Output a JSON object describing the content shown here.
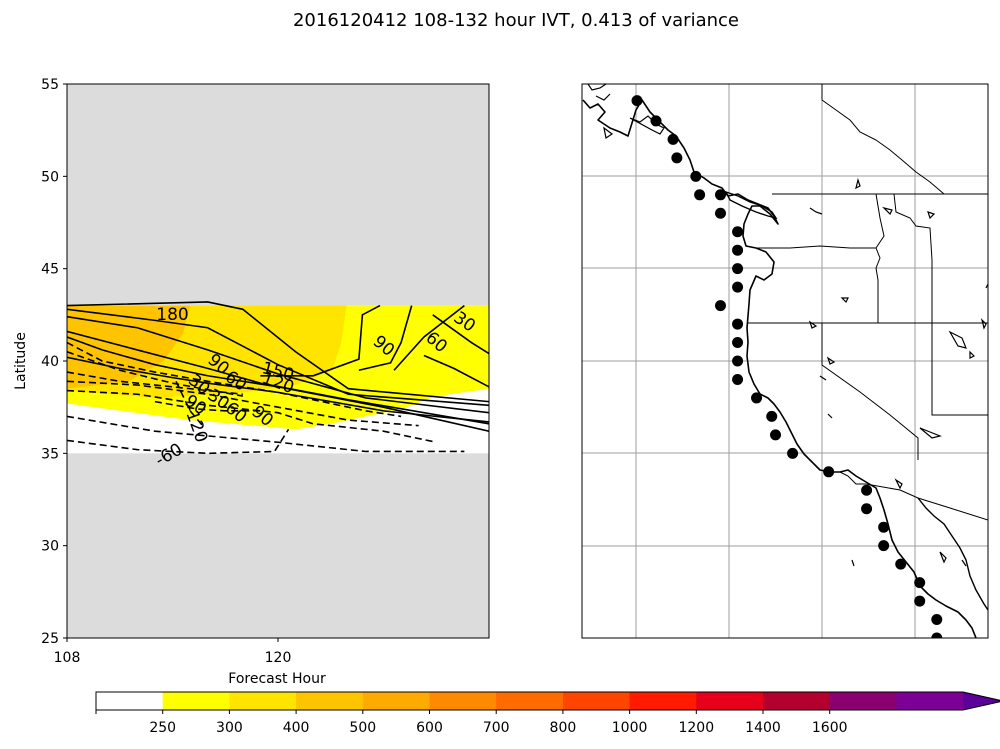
{
  "title": "2016120412 108-132 hour IVT, 0.413 of variance",
  "chart_data": [
    {
      "type": "contour",
      "xlabel": "Forecast Hour",
      "ylabel": "Latitude",
      "xlim": [
        108,
        132
      ],
      "ylim": [
        25,
        55
      ],
      "xticks": [
        108,
        120
      ],
      "xtick_labels": [
        "108",
        "120"
      ],
      "yticks": [
        25,
        30,
        35,
        40,
        45,
        50,
        55
      ],
      "ytick_labels": [
        "25",
        "30",
        "35",
        "40",
        "45",
        "50",
        "55"
      ],
      "masked_color": "#dcdcdc",
      "data_band": [
        35,
        43
      ],
      "filled_regions": [
        {
          "level": "250",
          "color": "#ffff00",
          "points": [
            [
              108,
              43
            ],
            [
              132,
              43
            ],
            [
              132,
              38.5
            ],
            [
              129,
              38.1
            ],
            [
              127,
              37.4
            ],
            [
              123,
              36.6
            ],
            [
              121,
              36.3
            ],
            [
              115,
              36.8
            ],
            [
              108,
              37.7
            ]
          ]
        },
        {
          "level": "300",
          "color": "#ffe400",
          "points": [
            [
              108,
              43
            ],
            [
              123.9,
              43
            ],
            [
              123.6,
              41
            ],
            [
              123.1,
              39.5
            ],
            [
              121,
              38.7
            ],
            [
              118,
              38.3
            ],
            [
              113,
              38
            ],
            [
              108,
              38.4
            ]
          ]
        },
        {
          "level": "400",
          "color": "#ffc400",
          "points": [
            [
              108,
              43
            ],
            [
              115,
              43
            ],
            [
              114.6,
              41.5
            ],
            [
              113.5,
              40
            ],
            [
              111.5,
              38.9
            ],
            [
              108,
              38.5
            ]
          ]
        }
      ],
      "contour_labels": [
        {
          "text": "180",
          "x": 114.0,
          "y": 42.5,
          "angle": 0
        },
        {
          "text": "150",
          "x": 120.0,
          "y": 39.4,
          "angle": 15
        },
        {
          "text": "120",
          "x": 120.0,
          "y": 38.8,
          "angle": 20
        },
        {
          "text": "90",
          "x": 126.0,
          "y": 40.8,
          "angle": 40
        },
        {
          "text": "60",
          "x": 129.0,
          "y": 41.0,
          "angle": 40
        },
        {
          "text": "30",
          "x": 130.6,
          "y": 42.1,
          "angle": 35
        },
        {
          "text": "90",
          "x": 116.6,
          "y": 39.8,
          "angle": 40
        },
        {
          "text": "60",
          "x": 117.6,
          "y": 38.9,
          "angle": 35
        },
        {
          "text": "30",
          "x": 116.6,
          "y": 37.9,
          "angle": 35
        },
        {
          "text": "60",
          "x": 117.6,
          "y": 37.2,
          "angle": 40
        },
        {
          "text": "90",
          "x": 119.1,
          "y": 37.0,
          "angle": 40
        },
        {
          "text": "30",
          "x": 115.5,
          "y": 38.7,
          "angle": 40
        },
        {
          "text": "90",
          "x": 115.3,
          "y": 37.6,
          "angle": 35
        },
        {
          "text": "-120",
          "x": 115.3,
          "y": 36.6,
          "angle": 70
        },
        {
          "text": "-60",
          "x": 113.8,
          "y": 34.9,
          "angle": -30
        }
      ],
      "positive_contours": [
        [
          [
            108,
            43
          ],
          [
            116,
            43.2
          ],
          [
            118,
            42.8
          ],
          [
            121,
            40.5
          ],
          [
            124,
            38.5
          ],
          [
            132,
            37.8
          ]
        ],
        [
          [
            108,
            42.8
          ],
          [
            113,
            42.2
          ],
          [
            116,
            41.8
          ],
          [
            118,
            40.8
          ],
          [
            120,
            39.8
          ],
          [
            124,
            38.2
          ],
          [
            132,
            37.6
          ]
        ],
        [
          [
            108,
            42.4
          ],
          [
            112,
            41.8
          ],
          [
            116,
            40.6
          ],
          [
            120,
            39.3
          ],
          [
            125,
            38
          ],
          [
            132,
            37.2
          ]
        ],
        [
          [
            108,
            41.6
          ],
          [
            112,
            40.6
          ],
          [
            116,
            39.6
          ],
          [
            119,
            38.8
          ],
          [
            124,
            37.9
          ],
          [
            132,
            36.6
          ]
        ],
        [
          [
            108,
            41.3
          ],
          [
            110,
            40.6
          ],
          [
            113,
            39.8
          ],
          [
            116,
            39.2
          ],
          [
            120,
            38.6
          ],
          [
            126,
            37.5
          ],
          [
            132,
            36.2
          ]
        ],
        [
          [
            108,
            40.2
          ],
          [
            111,
            39.6
          ],
          [
            114,
            39.1
          ],
          [
            116,
            38.8
          ],
          [
            120,
            38.3
          ],
          [
            126,
            37.3
          ],
          [
            132,
            36.7
          ]
        ],
        [
          [
            119,
            39.2
          ],
          [
            122,
            39.2
          ],
          [
            124.6,
            40.1
          ],
          [
            124.8,
            42.5
          ],
          [
            125.8,
            43
          ]
        ],
        [
          [
            124.6,
            39.5
          ],
          [
            126.4,
            39.9
          ],
          [
            127,
            41
          ],
          [
            127.6,
            43
          ]
        ],
        [
          [
            126.6,
            39.5
          ],
          [
            128.3,
            41.3
          ],
          [
            130.6,
            43
          ]
        ],
        [
          [
            128.3,
            40.3
          ],
          [
            130,
            39.6
          ],
          [
            132,
            38.6
          ]
        ],
        [
          [
            128.8,
            42.5
          ],
          [
            131,
            41
          ],
          [
            132,
            40.4
          ]
        ]
      ],
      "negative_contours": [
        [
          [
            108,
            38.9
          ],
          [
            112,
            38.7
          ],
          [
            116,
            38.2
          ],
          [
            120,
            37.5
          ],
          [
            124,
            36.8
          ],
          [
            128,
            36.5
          ]
        ],
        [
          [
            108,
            38.4
          ],
          [
            112,
            38.2
          ],
          [
            116,
            37.6
          ],
          [
            120,
            37.2
          ],
          [
            122,
            36.6
          ],
          [
            126,
            36.2
          ],
          [
            129,
            35.6
          ]
        ],
        [
          [
            108,
            37.0
          ],
          [
            113,
            36.2
          ],
          [
            120,
            35.6
          ],
          [
            125,
            35.1
          ],
          [
            130.6,
            35.1
          ]
        ],
        [
          [
            108,
            35.7
          ],
          [
            112,
            35.2
          ],
          [
            116,
            35.0
          ],
          [
            119.8,
            35.1
          ],
          [
            120.6,
            36.3
          ]
        ],
        [
          [
            108,
            41
          ],
          [
            110,
            40
          ],
          [
            113,
            39.4
          ],
          [
            116,
            38.9
          ],
          [
            120,
            38.3
          ],
          [
            125,
            37.3
          ],
          [
            127,
            37
          ]
        ],
        [
          [
            108,
            40.5
          ],
          [
            111,
            39.5
          ],
          [
            114,
            38.8
          ],
          [
            118,
            38.1
          ]
        ],
        [
          [
            108,
            39.4
          ],
          [
            111,
            38.9
          ],
          [
            114,
            38.6
          ],
          [
            118,
            38.2
          ]
        ],
        [
          [
            113,
            37.8
          ],
          [
            115.4,
            37.4
          ],
          [
            117,
            37.3
          ],
          [
            119,
            37.3
          ]
        ],
        [
          [
            114.2,
            38.9
          ],
          [
            115,
            37.3
          ],
          [
            115.8,
            36.4
          ]
        ]
      ]
    },
    {
      "type": "map",
      "lon_range": [
        -136,
        -114.6
      ],
      "lat_range": [
        25,
        55
      ],
      "gridlines": true,
      "station_points": [
        [
          -133.1,
          54.1
        ],
        [
          -132.1,
          53.0
        ],
        [
          -131.2,
          52.0
        ],
        [
          -131.0,
          51.0
        ],
        [
          -130.0,
          50.0
        ],
        [
          -129.8,
          49.0
        ],
        [
          -128.7,
          49.0
        ],
        [
          -128.7,
          48.0
        ],
        [
          -127.8,
          47.0
        ],
        [
          -127.8,
          46.0
        ],
        [
          -127.8,
          45.0
        ],
        [
          -127.8,
          44.0
        ],
        [
          -128.7,
          43.0
        ],
        [
          -127.8,
          42.0
        ],
        [
          -127.8,
          41.0
        ],
        [
          -127.8,
          40.0
        ],
        [
          -127.8,
          39.0
        ],
        [
          -126.8,
          38.0
        ],
        [
          -126.0,
          37.0
        ],
        [
          -125.8,
          36.0
        ],
        [
          -124.9,
          35.0
        ],
        [
          -123.0,
          34.0
        ],
        [
          -121.0,
          33.0
        ],
        [
          -121.0,
          32.0
        ],
        [
          -120.1,
          31.0
        ],
        [
          -120.1,
          30.0
        ],
        [
          -119.2,
          29.0
        ],
        [
          -118.2,
          28.0
        ],
        [
          -118.2,
          27.0
        ],
        [
          -117.3,
          26.0
        ],
        [
          -117.3,
          25.0
        ]
      ]
    }
  ],
  "colorbar": {
    "tick_labels": [
      "250",
      "300",
      "400",
      "500",
      "600",
      "700",
      "800",
      "1000",
      "1200",
      "1400",
      "1600"
    ],
    "colors": [
      "#ffffff",
      "#ffff00",
      "#ffe400",
      "#ffc400",
      "#ffaa00",
      "#ff8a00",
      "#ff6b00",
      "#ff4500",
      "#ff1a00",
      "#e6001c",
      "#b3002e",
      "#8b0070",
      "#7b0096",
      "#5b0099"
    ]
  }
}
